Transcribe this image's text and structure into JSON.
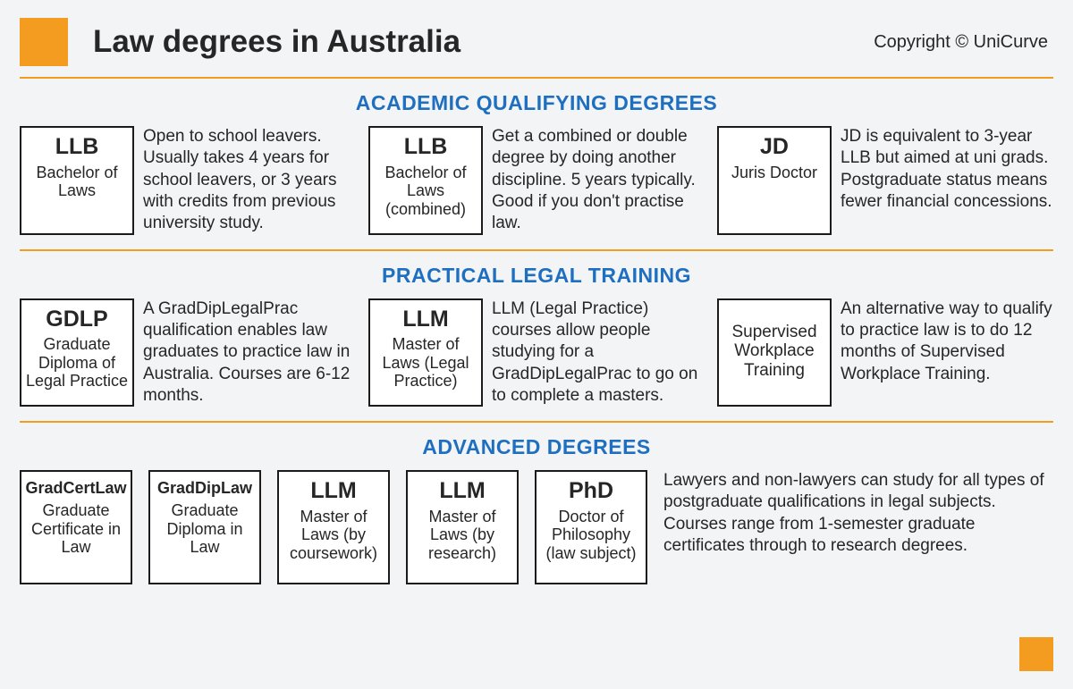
{
  "colors": {
    "bg": "#f2f4f6",
    "accent_orange": "#f39c1f",
    "section_blue": "#1f6fc0",
    "box_border": "#1b1b1b",
    "box_bg": "#ffffff",
    "text": "#262626"
  },
  "header": {
    "title": "Law degrees in Australia",
    "copyright": "Copyright © UniCurve"
  },
  "sections": {
    "academic": {
      "title": "ACADEMIC QUALIFYING DEGREES",
      "items": [
        {
          "abbr": "LLB",
          "name": "Bachelor of Laws",
          "desc": "Open to school leavers. Usually takes 4 years for school leavers, or 3 years with credits from previous university study."
        },
        {
          "abbr": "LLB",
          "name": "Bachelor of Laws (combined)",
          "desc": "Get a combined or double degree by doing another discipline. 5 years typically. Good if you don't practise law."
        },
        {
          "abbr": "JD",
          "name": "Juris Doctor",
          "desc": "JD is equivalent to 3-year LLB but aimed at uni grads. Postgraduate status means fewer financial concessions."
        }
      ]
    },
    "practical": {
      "title": "PRACTICAL LEGAL TRAINING",
      "items": [
        {
          "abbr": "GDLP",
          "name": "Graduate Diploma of Legal Practice",
          "desc": "A GradDipLegalPrac qualification enables law graduates to practice law in Australia. Courses are 6-12 months."
        },
        {
          "abbr": "LLM",
          "name": "Master of Laws (Legal Practice)",
          "desc": "LLM (Legal Practice) courses allow people studying for a GradDipLegalPrac to go on to complete a masters."
        },
        {
          "abbr": "",
          "name": "Supervised Workplace Training",
          "desc": "An alternative way to qualify to practice law is to do 12 months of Supervised Workplace Training."
        }
      ]
    },
    "advanced": {
      "title": "ADVANCED DEGREES",
      "items": [
        {
          "abbr": "GradCertLaw",
          "name": "Graduate Certificate in Law"
        },
        {
          "abbr": "GradDipLaw",
          "name": "Graduate Diploma in Law"
        },
        {
          "abbr": "LLM",
          "name": "Master of Laws (by coursework)"
        },
        {
          "abbr": "LLM",
          "name": "Master of Laws (by research)"
        },
        {
          "abbr": "PhD",
          "name": "Doctor of Philosophy (law subject)"
        }
      ],
      "desc": "Lawyers and non-lawyers can study for all types of postgraduate qualifications in legal subjects. Courses range from 1-semester graduate certificates through to research degrees."
    }
  }
}
